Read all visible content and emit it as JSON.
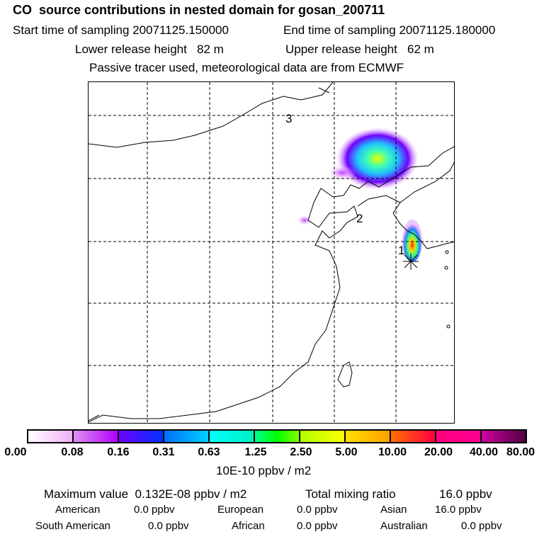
{
  "header": {
    "title": "CO  source contributions in nested domain for gosan_200711",
    "start_label": "Start time of sampling 20071125.150000",
    "end_label": "End time of sampling 20071125.180000",
    "lower_label": "Lower release height   82 m",
    "upper_label": "Upper release height   62 m",
    "note": "Passive tracer used, meteorological data are from ECMWF"
  },
  "map": {
    "markers": [
      "1",
      "2",
      "3"
    ]
  },
  "colorbar": {
    "labels": [
      "0.00",
      "0.08",
      "0.16",
      "0.31",
      "0.63",
      "1.25",
      "2.50",
      "5.00",
      "10.00",
      "20.00",
      "40.00",
      "80.00"
    ],
    "unit": "10E-10 ppbv / m2",
    "colors": [
      "#ffffff",
      "#d980ff",
      "#5000ff",
      "#0080ff",
      "#00ffff",
      "#00ff80",
      "#b0ff00",
      "#ffd000",
      "#ff6000",
      "#ff0090",
      "#a00080"
    ]
  },
  "summary": {
    "max_label": "Maximum value  0.132E-08 ppbv / m2",
    "total_label": "Total mixing ratio",
    "total_value": "16.0 ppbv",
    "rows": [
      [
        {
          "name": "American",
          "value": "0.0 ppbv"
        },
        {
          "name": "European",
          "value": "0.0 ppbv"
        },
        {
          "name": "Asian",
          "value": "16.0 ppbv"
        }
      ],
      [
        {
          "name": "South American",
          "value": "0.0 ppbv"
        },
        {
          "name": "African",
          "value": "0.0 ppbv"
        },
        {
          "name": "Australian",
          "value": "0.0 ppbv"
        }
      ]
    ]
  }
}
